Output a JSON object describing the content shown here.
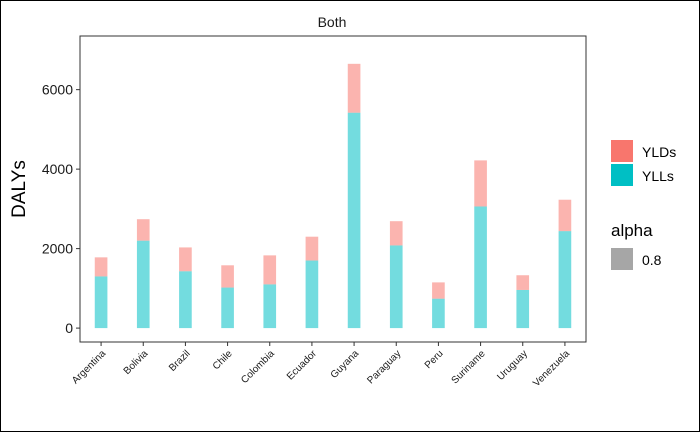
{
  "chart_data": {
    "type": "bar",
    "stacked": true,
    "facet_title": "Both",
    "ylabel": "DALYs",
    "xlabel": "",
    "ylim": [
      -350,
      7350
    ],
    "yticks": [
      0,
      2000,
      4000,
      6000
    ],
    "ytick_labels": [
      "0",
      "2000",
      "4000",
      "6000"
    ],
    "categories": [
      "Argentina",
      "Bolivia",
      "Brazil",
      "Chile",
      "Colombia",
      "Ecuador",
      "Guyana",
      "Paraguay",
      "Peru",
      "Suriname",
      "Uruguay",
      "Venezuela"
    ],
    "series": [
      {
        "name": "YLLs",
        "color": "#00BFC4",
        "values": [
          1300,
          2200,
          1430,
          1020,
          1100,
          1700,
          5420,
          2080,
          740,
          3060,
          960,
          2440
        ]
      },
      {
        "name": "YLDs",
        "color": "#F8766D",
        "values": [
          480,
          540,
          600,
          560,
          730,
          600,
          1230,
          610,
          410,
          1160,
          370,
          790
        ]
      }
    ],
    "bar_alpha": 0.55,
    "grid": false,
    "legend": {
      "position": "right",
      "entries": [
        {
          "label": "YLDs",
          "color": "#F8766D"
        },
        {
          "label": "YLLs",
          "color": "#00BFC4"
        }
      ],
      "alpha_title": "alpha",
      "alpha_entry": {
        "label": "0.8",
        "color": "#A6A6A6"
      }
    }
  }
}
